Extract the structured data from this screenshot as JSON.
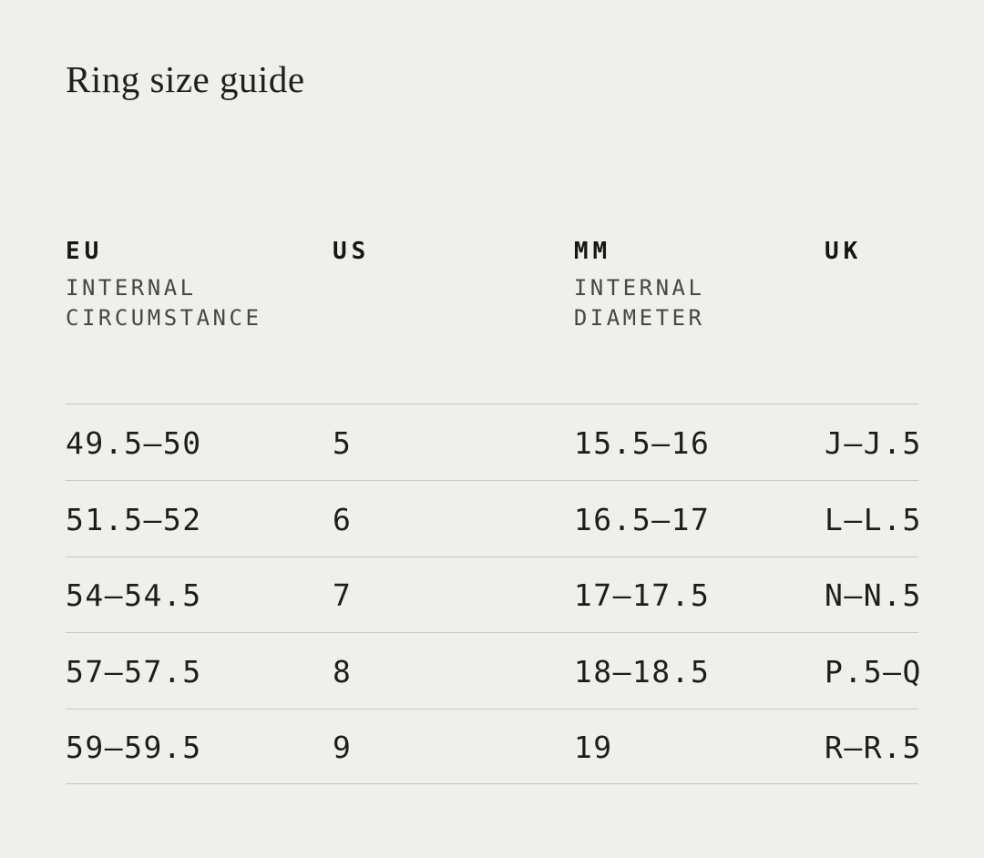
{
  "page": {
    "title": "Ring size guide",
    "background_color": "#efefed",
    "text_color": "#1d1d1b",
    "divider_color": "#c7c7c5"
  },
  "table": {
    "columns": [
      {
        "label": "EU",
        "sublabel_lines": [
          "INTERNAL",
          "CIRCUMSTANCE"
        ]
      },
      {
        "label": "US",
        "sublabel_lines": []
      },
      {
        "label": "MM",
        "sublabel_lines": [
          "INTERNAL",
          "DIAMETER"
        ]
      },
      {
        "label": "UK",
        "sublabel_lines": []
      }
    ],
    "rows": [
      {
        "eu": "49.5—50",
        "us": "5",
        "mm": "15.5—16",
        "uk": "J—J.5"
      },
      {
        "eu": "51.5—52",
        "us": "6",
        "mm": "16.5—17",
        "uk": "L—L.5"
      },
      {
        "eu": "54—54.5",
        "us": "7",
        "mm": "17—17.5",
        "uk": "N—N.5"
      },
      {
        "eu": "57—57.5",
        "us": "8",
        "mm": "18—18.5",
        "uk": "P.5—Q"
      },
      {
        "eu": "59—59.5",
        "us": "9",
        "mm": "19",
        "uk": "R—R.5"
      }
    ]
  }
}
